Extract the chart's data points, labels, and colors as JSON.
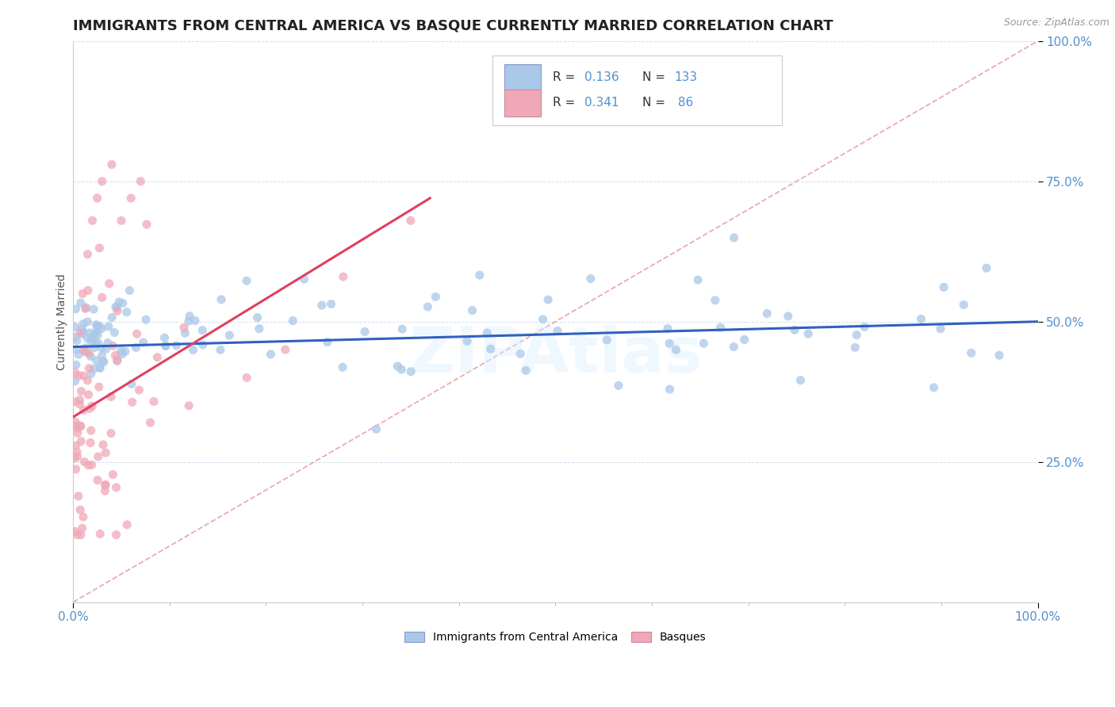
{
  "title": "IMMIGRANTS FROM CENTRAL AMERICA VS BASQUE CURRENTLY MARRIED CORRELATION CHART",
  "source_text": "Source: ZipAtlas.com",
  "ylabel": "Currently Married",
  "xlim": [
    0.0,
    1.0
  ],
  "ylim": [
    0.0,
    1.0
  ],
  "xtick_labels": [
    "0.0%",
    "100.0%"
  ],
  "ytick_labels": [
    "25.0%",
    "50.0%",
    "75.0%",
    "100.0%"
  ],
  "ytick_positions": [
    0.25,
    0.5,
    0.75,
    1.0
  ],
  "blue_R": 0.136,
  "blue_N": 133,
  "pink_R": 0.341,
  "pink_N": 86,
  "blue_color": "#aac8e8",
  "pink_color": "#f0a8b8",
  "blue_line_color": "#3060c0",
  "pink_line_color": "#e04060",
  "diagonal_color": "#e8a0b0",
  "legend_label_blue": "Immigrants from Central America",
  "legend_label_pink": "Basques",
  "watermark": "ZIPAtlas",
  "title_fontsize": 13,
  "axis_label_fontsize": 10,
  "tick_fontsize": 11,
  "tick_color": "#5090d0",
  "legend_text_color": "#333333",
  "legend_value_color": "#5090d0"
}
